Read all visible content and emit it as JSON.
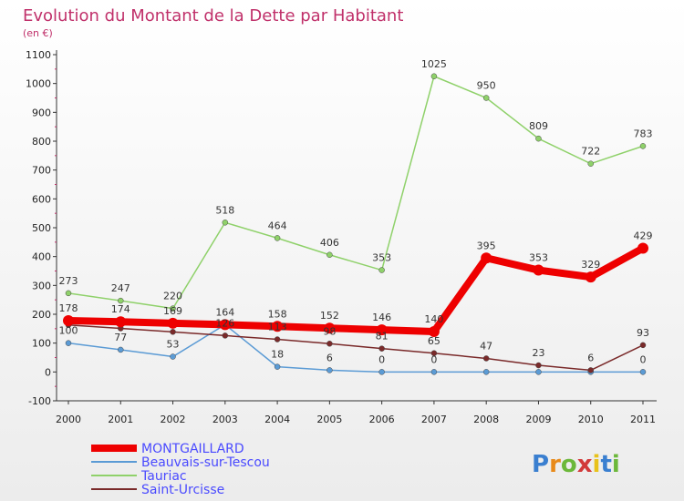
{
  "chart_data": {
    "type": "line",
    "title": "Evolution du Montant de la Dette par Habitant",
    "subtitle": "(en €)",
    "x": [
      "2000",
      "2001",
      "2002",
      "2003",
      "2004",
      "2005",
      "2006",
      "2007",
      "2008",
      "2009",
      "2010",
      "2011"
    ],
    "ylim": [
      -100,
      1100
    ],
    "yticks": [
      -100,
      0,
      100,
      200,
      300,
      400,
      500,
      600,
      700,
      800,
      900,
      1000,
      1100
    ],
    "grid": false,
    "legend": "bottom-left",
    "series": [
      {
        "name": "MONTGAILLARD",
        "color": "#ee0000",
        "values": [
          178,
          174,
          169,
          164,
          158,
          152,
          146,
          140,
          395,
          353,
          329,
          429
        ],
        "labels": [
          "178",
          "174",
          "169",
          "164",
          "158",
          "152",
          "146",
          "140",
          "395",
          "353",
          "329",
          "429"
        ]
      },
      {
        "name": "Beauvais-sur-Tescou",
        "color": "#5b9bd5",
        "values": [
          100,
          77,
          53,
          164,
          18,
          6,
          0,
          0,
          0,
          0,
          0,
          0
        ],
        "labels": [
          "100",
          "77",
          "53",
          "",
          "18",
          "6",
          "0",
          "0",
          "",
          "",
          "",
          "0"
        ]
      },
      {
        "name": "Tauriac",
        "color": "#8fd16a",
        "values": [
          273,
          247,
          220,
          518,
          464,
          406,
          353,
          1025,
          950,
          809,
          722,
          783
        ],
        "labels": [
          "273",
          "247",
          "220",
          "518",
          "464",
          "406",
          "353",
          "1025",
          "950",
          "809",
          "722",
          "783"
        ]
      },
      {
        "name": "Saint-Urcisse",
        "color": "#7a2a2a",
        "values": [
          163,
          151,
          139,
          126,
          113,
          98,
          81,
          65,
          47,
          23,
          6,
          93
        ],
        "labels": [
          "",
          "",
          "",
          "126",
          "113",
          "98",
          "81",
          "65",
          "47",
          "23",
          "6",
          "93"
        ]
      }
    ]
  },
  "logo": {
    "text": "Proxiti",
    "colors": [
      "#3a7fd0",
      "#e88a1a",
      "#6cb83a",
      "#d23a3a",
      "#e8c21a",
      "#3a7fd0",
      "#6cb83a"
    ]
  }
}
